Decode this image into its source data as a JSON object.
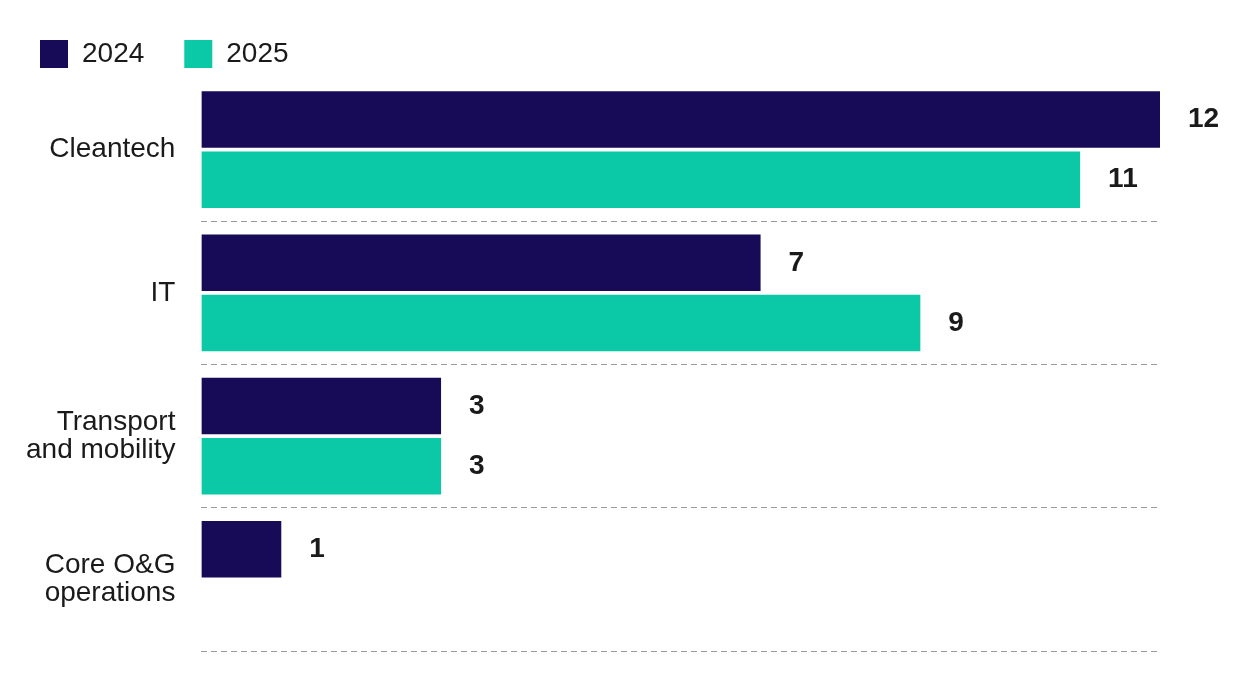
{
  "chart_data": {
    "type": "bar",
    "orientation": "horizontal",
    "categories": [
      "Cleantech",
      "IT",
      "Transport\nand mobility",
      "Core O&G\noperations"
    ],
    "series": [
      {
        "name": "2024",
        "color": "#170a57",
        "values": [
          12,
          7,
          3,
          1
        ]
      },
      {
        "name": "2025",
        "color": "#0bc9a6",
        "values": [
          11,
          9,
          3,
          null
        ]
      }
    ],
    "data_labels": true,
    "legend": "top left",
    "grid": "y",
    "tick_labels": "y"
  }
}
